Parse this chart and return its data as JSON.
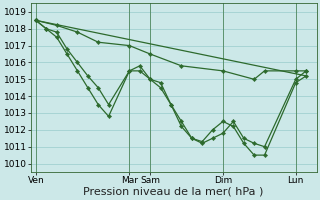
{
  "bg_color": "#cce8e8",
  "grid_color": "#99cccc",
  "line_color": "#2d6a2d",
  "marker_color": "#2d6a2d",
  "ylim": [
    1009.5,
    1019.5
  ],
  "xlabel": "Pression niveau de la mer( hPa )",
  "xlabel_fontsize": 8,
  "tick_fontsize": 6.5,
  "day_labels": [
    "Ven",
    "Mar",
    "Sam",
    "Dim",
    "Lun"
  ],
  "day_x": [
    0,
    9,
    11,
    18,
    25
  ],
  "xlim": [
    -0.5,
    27
  ],
  "series1_x": [
    0,
    1,
    2,
    3,
    4,
    5,
    6,
    7,
    9,
    10,
    11,
    12,
    13,
    14,
    15,
    16,
    17,
    18,
    19,
    20,
    21,
    22,
    25,
    26
  ],
  "series1_y": [
    1018.5,
    1018.0,
    1017.5,
    1016.5,
    1015.5,
    1014.5,
    1013.5,
    1012.8,
    1015.5,
    1015.8,
    1015.0,
    1014.8,
    1013.5,
    1012.2,
    1011.5,
    1011.3,
    1012.0,
    1012.5,
    1012.2,
    1011.2,
    1010.5,
    1010.5,
    1014.8,
    1015.2
  ],
  "series2_x": [
    0,
    1,
    2,
    3,
    4,
    5,
    6,
    7,
    9,
    10,
    11,
    12,
    13,
    14,
    15,
    16,
    17,
    18,
    19,
    20,
    21,
    22,
    25,
    26
  ],
  "series2_y": [
    1018.5,
    1018.0,
    1017.8,
    1016.8,
    1016.0,
    1015.2,
    1014.5,
    1013.5,
    1015.5,
    1015.5,
    1015.0,
    1014.5,
    1013.5,
    1012.5,
    1011.5,
    1011.2,
    1011.5,
    1011.8,
    1012.5,
    1011.5,
    1011.2,
    1011.0,
    1015.0,
    1015.5
  ],
  "series3_x": [
    0,
    26
  ],
  "series3_y": [
    1018.5,
    1015.2
  ],
  "series4_x": [
    0,
    2,
    4,
    6,
    9,
    11,
    14,
    18,
    21,
    22,
    25,
    26
  ],
  "series4_y": [
    1018.5,
    1018.2,
    1017.8,
    1017.2,
    1017.0,
    1016.5,
    1015.8,
    1015.5,
    1015.0,
    1015.5,
    1015.5,
    1015.5
  ]
}
